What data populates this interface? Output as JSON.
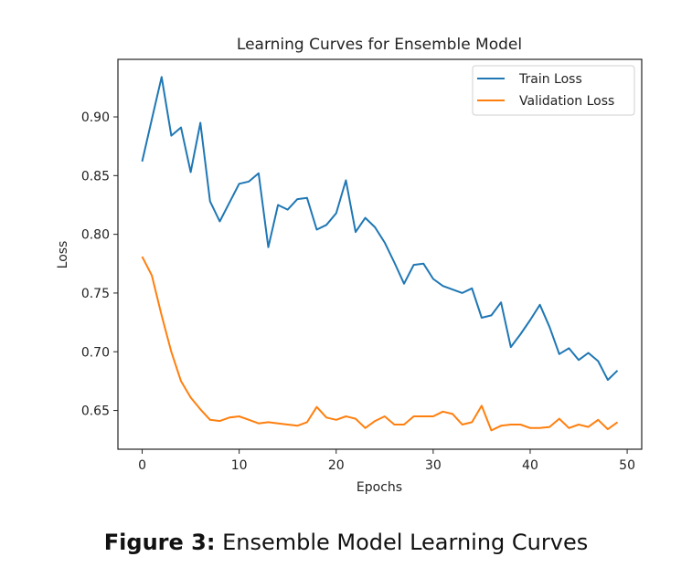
{
  "chart_data": {
    "type": "line",
    "title": "Learning Curves for Ensemble Model",
    "xlabel": "Epochs",
    "ylabel": "Loss",
    "xlim": [
      -2.5,
      51.5
    ],
    "ylim": [
      0.617,
      0.949
    ],
    "xticks": [
      0,
      10,
      20,
      30,
      40,
      50
    ],
    "xtick_labels": [
      "0",
      "10",
      "20",
      "30",
      "40",
      "50"
    ],
    "yticks": [
      0.65,
      0.7,
      0.75,
      0.8,
      0.85,
      0.9
    ],
    "ytick_labels": [
      "0.65",
      "0.70",
      "0.75",
      "0.80",
      "0.85",
      "0.90"
    ],
    "grid": false,
    "legend_position": "top-right",
    "x": [
      0,
      1,
      2,
      3,
      4,
      5,
      6,
      7,
      8,
      9,
      10,
      11,
      12,
      13,
      14,
      15,
      16,
      17,
      18,
      19,
      20,
      21,
      22,
      23,
      24,
      25,
      26,
      27,
      28,
      29,
      30,
      31,
      32,
      33,
      34,
      35,
      36,
      37,
      38,
      39,
      40,
      41,
      42,
      43,
      44,
      45,
      46,
      47,
      48,
      49
    ],
    "series": [
      {
        "name": "Train Loss",
        "color": "#1f77b4",
        "values": [
          0.862,
          0.898,
          0.934,
          0.884,
          0.891,
          0.853,
          0.895,
          0.828,
          0.811,
          0.827,
          0.843,
          0.845,
          0.852,
          0.789,
          0.825,
          0.821,
          0.83,
          0.831,
          0.804,
          0.808,
          0.818,
          0.846,
          0.802,
          0.814,
          0.806,
          0.793,
          0.776,
          0.758,
          0.774,
          0.775,
          0.762,
          0.756,
          0.753,
          0.75,
          0.754,
          0.729,
          0.731,
          0.742,
          0.704,
          0.715,
          0.727,
          0.74,
          0.721,
          0.698,
          0.703,
          0.693,
          0.699,
          0.692,
          0.676,
          0.684
        ]
      },
      {
        "name": "Validation Loss",
        "color": "#ff7f0e",
        "values": [
          0.781,
          0.765,
          0.731,
          0.7,
          0.675,
          0.661,
          0.651,
          0.642,
          0.641,
          0.644,
          0.645,
          0.642,
          0.639,
          0.64,
          0.639,
          0.638,
          0.637,
          0.64,
          0.653,
          0.644,
          0.642,
          0.645,
          0.643,
          0.635,
          0.641,
          0.645,
          0.638,
          0.638,
          0.645,
          0.645,
          0.645,
          0.649,
          0.647,
          0.638,
          0.64,
          0.654,
          0.633,
          0.637,
          0.638,
          0.638,
          0.635,
          0.635,
          0.636,
          0.643,
          0.635,
          0.638,
          0.636,
          0.642,
          0.634,
          0.64
        ]
      }
    ]
  },
  "caption": {
    "label": "Figure 3:",
    "text": "Ensemble Model Learning Curves"
  }
}
